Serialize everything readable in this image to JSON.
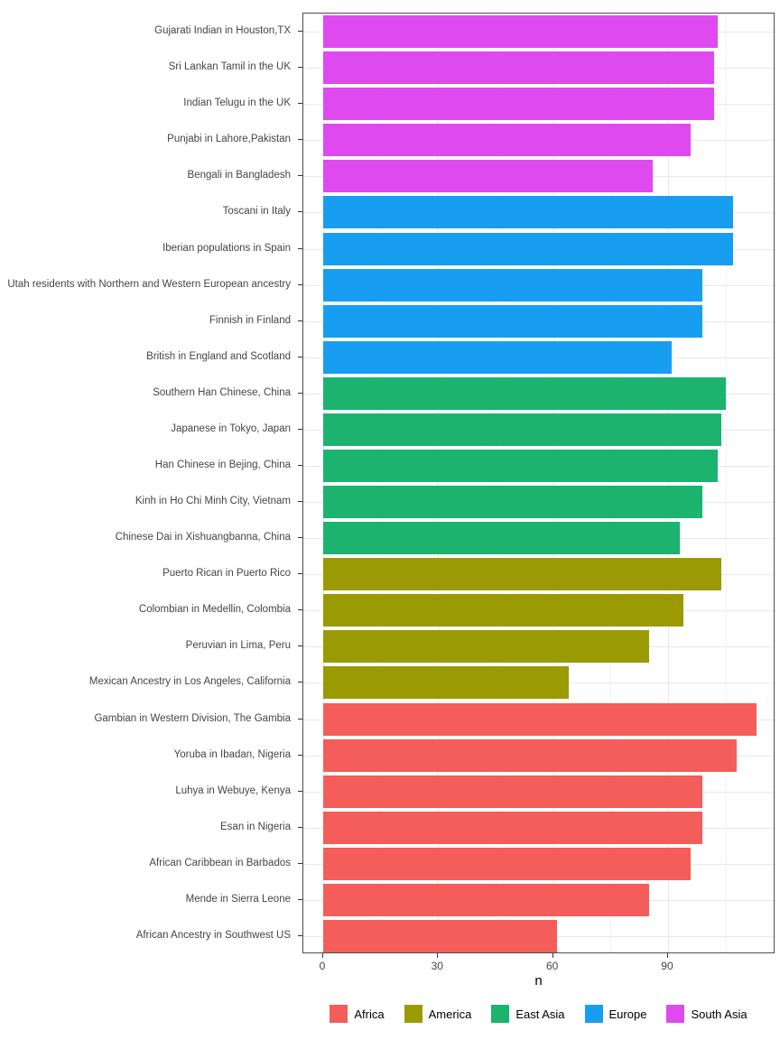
{
  "chart_data": {
    "type": "bar",
    "orientation": "horizontal",
    "title": "",
    "xlabel": "n",
    "ylabel": "",
    "xlim": [
      -6,
      118
    ],
    "x_ticks": [
      0,
      30,
      60,
      90
    ],
    "x_tick_labels": [
      "0",
      "30",
      "60",
      "90"
    ],
    "x_minor_gridlines": [
      15,
      45,
      75,
      105
    ],
    "grid": true,
    "legend_position": "bottom",
    "legend_entries": [
      "Africa",
      "America",
      "East Asia",
      "Europe",
      "South Asia"
    ],
    "region_colors": {
      "Africa": "#F45D59",
      "America": "#9A9B02",
      "East Asia": "#1BB36E",
      "Europe": "#189EF0",
      "South Asia": "#DF49F0"
    },
    "bars": [
      {
        "label": "Gujarati Indian in Houston,TX",
        "region": "South Asia",
        "value": 103
      },
      {
        "label": "Sri Lankan Tamil in the UK",
        "region": "South Asia",
        "value": 102
      },
      {
        "label": "Indian Telugu in the UK",
        "region": "South Asia",
        "value": 102
      },
      {
        "label": "Punjabi in Lahore,Pakistan",
        "region": "South Asia",
        "value": 96
      },
      {
        "label": "Bengali in Bangladesh",
        "region": "South Asia",
        "value": 86
      },
      {
        "label": "Toscani in Italy",
        "region": "Europe",
        "value": 107
      },
      {
        "label": "Iberian populations in Spain",
        "region": "Europe",
        "value": 107
      },
      {
        "label": "Utah residents with Northern and Western European ancestry",
        "region": "Europe",
        "value": 99
      },
      {
        "label": "Finnish in Finland",
        "region": "Europe",
        "value": 99
      },
      {
        "label": "British in England and Scotland",
        "region": "Europe",
        "value": 91
      },
      {
        "label": "Southern Han Chinese, China",
        "region": "East Asia",
        "value": 105
      },
      {
        "label": "Japanese in Tokyo, Japan",
        "region": "East Asia",
        "value": 104
      },
      {
        "label": "Han Chinese in Bejing, China",
        "region": "East Asia",
        "value": 103
      },
      {
        "label": "Kinh in Ho Chi Minh City, Vietnam",
        "region": "East Asia",
        "value": 99
      },
      {
        "label": "Chinese Dai in Xishuangbanna, China",
        "region": "East Asia",
        "value": 93
      },
      {
        "label": "Puerto Rican in Puerto Rico",
        "region": "America",
        "value": 104
      },
      {
        "label": "Colombian in Medellin, Colombia",
        "region": "America",
        "value": 94
      },
      {
        "label": "Peruvian in Lima, Peru",
        "region": "America",
        "value": 85
      },
      {
        "label": "Mexican Ancestry in Los Angeles, California",
        "region": "America",
        "value": 64
      },
      {
        "label": "Gambian in Western Division, The Gambia",
        "region": "Africa",
        "value": 113
      },
      {
        "label": "Yoruba in Ibadan, Nigeria",
        "region": "Africa",
        "value": 108
      },
      {
        "label": "Luhya in Webuye, Kenya",
        "region": "Africa",
        "value": 99
      },
      {
        "label": "Esan in Nigeria",
        "region": "Africa",
        "value": 99
      },
      {
        "label": "African Caribbean in Barbados",
        "region": "Africa",
        "value": 96
      },
      {
        "label": "Mende in Sierra Leone",
        "region": "Africa",
        "value": 85
      },
      {
        "label": "African Ancestry in Southwest US",
        "region": "Africa",
        "value": 61
      }
    ]
  },
  "style_colors": {
    "panel_border": "#4d4d4d",
    "grid_major": "#e8e8e8",
    "grid_minor": "#f3f3f3",
    "tick_text": "#454545",
    "axis_title_text": "#000000"
  }
}
